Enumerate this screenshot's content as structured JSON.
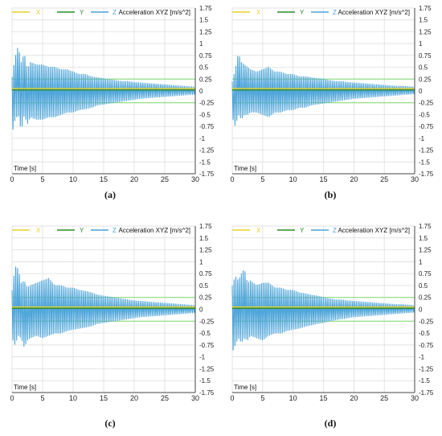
{
  "figure": {
    "colors": {
      "x": "#e8d02a",
      "y": "#2e8b2e",
      "z": "#4aa3d8",
      "band": "#7fd96f",
      "grid": "#d9d9d9"
    },
    "legend": [
      "X",
      "Y",
      "Z"
    ]
  },
  "chart_data": [
    {
      "type": "line",
      "panel_label": "(a)",
      "title": "Acceleration XYZ [m/s^2]",
      "xlabel": "Time [s]",
      "ylabel": "",
      "xlim": [
        0,
        30
      ],
      "ylim": [
        -1.75,
        1.75
      ],
      "xticks": [
        "0",
        "5",
        "10",
        "15",
        "20",
        "25",
        "30"
      ],
      "yticks": [
        "1.75",
        "1.5",
        "1.25",
        "1",
        "0.75",
        "0.5",
        "0.25",
        "0",
        "-0.25",
        "-0.5",
        "-0.75",
        "-1",
        "-1.25",
        "-1.5",
        "-1.75"
      ],
      "grid": true,
      "legend_position": "top-left",
      "reference_band": [
        -0.25,
        0.25
      ],
      "series": [
        {
          "name": "X",
          "x": [
            0,
            30
          ],
          "values": [
            0.05,
            0.05
          ]
        },
        {
          "name": "Y",
          "x": [
            0,
            30
          ],
          "values": [
            0.02,
            0.02
          ]
        },
        {
          "name": "Z",
          "x": [
            0,
            0.5,
            1,
            1.5,
            2,
            2.5,
            3,
            4,
            5,
            6,
            7,
            8,
            9,
            10,
            11,
            12,
            13,
            14,
            15,
            16,
            17,
            18,
            19,
            20,
            21,
            22,
            23,
            24,
            25,
            26,
            27,
            28,
            29,
            30
          ],
          "upper": [
            0.3,
            0.7,
            0.95,
            0.6,
            0.8,
            0.45,
            0.6,
            0.55,
            0.55,
            0.5,
            0.5,
            0.45,
            0.45,
            0.4,
            0.35,
            0.35,
            0.3,
            0.28,
            0.26,
            0.24,
            0.22,
            0.2,
            0.2,
            0.18,
            0.17,
            0.16,
            0.15,
            0.14,
            0.13,
            0.12,
            0.11,
            0.1,
            0.09,
            0.08
          ],
          "lower": [
            -0.9,
            -0.6,
            -0.5,
            -0.85,
            -0.5,
            -0.7,
            -0.55,
            -0.6,
            -0.6,
            -0.55,
            -0.55,
            -0.5,
            -0.45,
            -0.45,
            -0.4,
            -0.38,
            -0.35,
            -0.3,
            -0.28,
            -0.26,
            -0.24,
            -0.22,
            -0.2,
            -0.18,
            -0.16,
            -0.15,
            -0.14,
            -0.13,
            -0.12,
            -0.11,
            -0.1,
            -0.09,
            -0.08,
            -0.07
          ]
        }
      ]
    },
    {
      "type": "line",
      "panel_label": "(b)",
      "title": "Acceleration XYZ [m/s^2]",
      "xlabel": "Time [s]",
      "ylabel": "",
      "xlim": [
        0,
        30
      ],
      "ylim": [
        -1.75,
        1.75
      ],
      "xticks": [
        "0",
        "5",
        "10",
        "15",
        "20",
        "25",
        "30"
      ],
      "yticks": [
        "1.75",
        "1.5",
        "1.25",
        "1",
        "0.75",
        "0.5",
        "0.25",
        "0",
        "-0.25",
        "-0.5",
        "-0.75",
        "-1",
        "-1.25",
        "-1.5",
        "-1.75"
      ],
      "grid": true,
      "legend_position": "top-left",
      "reference_band": [
        -0.25,
        0.25
      ],
      "series": [
        {
          "name": "X",
          "x": [
            0,
            30
          ],
          "values": [
            0.05,
            0.05
          ]
        },
        {
          "name": "Y",
          "x": [
            0,
            30
          ],
          "values": [
            0.02,
            0.02
          ]
        },
        {
          "name": "Z",
          "x": [
            0,
            0.5,
            1,
            1.5,
            2,
            2.5,
            3,
            4,
            5,
            6,
            7,
            8,
            9,
            10,
            11,
            12,
            13,
            14,
            15,
            16,
            17,
            18,
            19,
            20,
            21,
            22,
            23,
            24,
            25,
            26,
            27,
            28,
            29,
            30
          ],
          "upper": [
            0.2,
            0.45,
            0.8,
            0.6,
            0.55,
            0.5,
            0.45,
            0.4,
            0.45,
            0.5,
            0.4,
            0.4,
            0.35,
            0.35,
            0.3,
            0.3,
            0.28,
            0.26,
            0.25,
            0.22,
            0.2,
            0.2,
            0.18,
            0.17,
            0.16,
            0.15,
            0.14,
            0.13,
            0.12,
            0.11,
            0.1,
            0.1,
            0.09,
            0.08
          ],
          "lower": [
            -0.55,
            -0.75,
            -0.5,
            -0.6,
            -0.5,
            -0.5,
            -0.45,
            -0.45,
            -0.5,
            -0.55,
            -0.45,
            -0.45,
            -0.4,
            -0.4,
            -0.35,
            -0.35,
            -0.3,
            -0.28,
            -0.26,
            -0.24,
            -0.22,
            -0.2,
            -0.18,
            -0.16,
            -0.15,
            -0.14,
            -0.13,
            -0.12,
            -0.11,
            -0.1,
            -0.09,
            -0.08,
            -0.07,
            -0.06
          ]
        }
      ]
    },
    {
      "type": "line",
      "panel_label": "(c)",
      "title": "Acceleration XYZ [m/s^2]",
      "xlabel": "Time [s]",
      "ylabel": "",
      "xlim": [
        0,
        30
      ],
      "ylim": [
        -1.75,
        1.75
      ],
      "xticks": [
        "0",
        "5",
        "10",
        "15",
        "20",
        "25",
        "30"
      ],
      "yticks": [
        "1.75",
        "1.5",
        "1.25",
        "1",
        "0.75",
        "0.5",
        "0.25",
        "0",
        "-0.25",
        "-0.5",
        "-0.75",
        "-1",
        "-1.25",
        "-1.5",
        "-1.75"
      ],
      "grid": true,
      "legend_position": "top-left",
      "reference_band": [
        -0.25,
        0.25
      ],
      "series": [
        {
          "name": "X",
          "x": [
            0,
            30
          ],
          "values": [
            0.05,
            0.05
          ]
        },
        {
          "name": "Y",
          "x": [
            0,
            30
          ],
          "values": [
            0.02,
            0.02
          ]
        },
        {
          "name": "Z",
          "x": [
            0,
            0.5,
            1,
            1.5,
            2,
            2.5,
            3,
            4,
            5,
            6,
            7,
            8,
            9,
            10,
            11,
            12,
            13,
            14,
            15,
            16,
            17,
            18,
            19,
            20,
            21,
            22,
            23,
            24,
            25,
            26,
            27,
            28,
            29,
            30
          ],
          "upper": [
            0.4,
            0.9,
            0.85,
            0.55,
            0.6,
            0.45,
            0.5,
            0.55,
            0.6,
            0.65,
            0.5,
            0.5,
            0.45,
            0.45,
            0.4,
            0.38,
            0.35,
            0.3,
            0.28,
            0.26,
            0.24,
            0.22,
            0.2,
            0.18,
            0.17,
            0.16,
            0.15,
            0.14,
            0.13,
            0.12,
            0.11,
            0.1,
            0.09,
            0.08
          ],
          "lower": [
            -0.6,
            -0.75,
            -0.55,
            -0.6,
            -0.8,
            -0.65,
            -0.6,
            -0.55,
            -0.6,
            -0.55,
            -0.5,
            -0.5,
            -0.45,
            -0.42,
            -0.4,
            -0.38,
            -0.35,
            -0.3,
            -0.28,
            -0.26,
            -0.24,
            -0.22,
            -0.2,
            -0.18,
            -0.16,
            -0.15,
            -0.14,
            -0.13,
            -0.12,
            -0.11,
            -0.1,
            -0.09,
            -0.08,
            -0.07
          ]
        }
      ]
    },
    {
      "type": "line",
      "panel_label": "(d)",
      "title": "Acceleration XYZ [m/s^2]",
      "xlabel": "Time [s]",
      "ylabel": "",
      "xlim": [
        0,
        30
      ],
      "ylim": [
        -1.75,
        1.75
      ],
      "xticks": [
        "0",
        "5",
        "10",
        "15",
        "20",
        "25",
        "30"
      ],
      "yticks": [
        "1.75",
        "1.5",
        "1.25",
        "1",
        "0.75",
        "0.5",
        "0.25",
        "0",
        "-0.25",
        "-0.5",
        "-0.75",
        "-1",
        "-1.25",
        "-1.5",
        "-1.75"
      ],
      "grid": true,
      "legend_position": "top-left",
      "reference_band": [
        -0.25,
        0.25
      ],
      "series": [
        {
          "name": "X",
          "x": [
            0,
            30
          ],
          "values": [
            0.05,
            0.05
          ]
        },
        {
          "name": "Y",
          "x": [
            0,
            30
          ],
          "values": [
            0.02,
            0.02
          ]
        },
        {
          "name": "Z",
          "x": [
            0,
            0.5,
            1,
            1.5,
            2,
            2.5,
            3,
            4,
            5,
            6,
            7,
            8,
            9,
            10,
            11,
            12,
            13,
            14,
            15,
            16,
            17,
            18,
            19,
            20,
            21,
            22,
            23,
            24,
            25,
            26,
            27,
            28,
            29,
            30
          ],
          "upper": [
            0.5,
            0.7,
            0.6,
            0.75,
            0.85,
            0.55,
            0.6,
            0.5,
            0.55,
            0.55,
            0.45,
            0.45,
            0.4,
            0.4,
            0.35,
            0.33,
            0.3,
            0.28,
            0.25,
            0.22,
            0.2,
            0.2,
            0.18,
            0.17,
            0.16,
            0.15,
            0.14,
            0.13,
            0.12,
            0.11,
            0.1,
            0.1,
            0.09,
            0.08
          ],
          "lower": [
            -0.9,
            -0.75,
            -0.6,
            -0.7,
            -0.6,
            -0.65,
            -0.55,
            -0.6,
            -0.65,
            -0.55,
            -0.5,
            -0.5,
            -0.45,
            -0.42,
            -0.4,
            -0.36,
            -0.33,
            -0.3,
            -0.28,
            -0.25,
            -0.22,
            -0.2,
            -0.18,
            -0.16,
            -0.15,
            -0.14,
            -0.13,
            -0.12,
            -0.11,
            -0.1,
            -0.09,
            -0.08,
            -0.07,
            -0.06
          ]
        }
      ]
    }
  ]
}
